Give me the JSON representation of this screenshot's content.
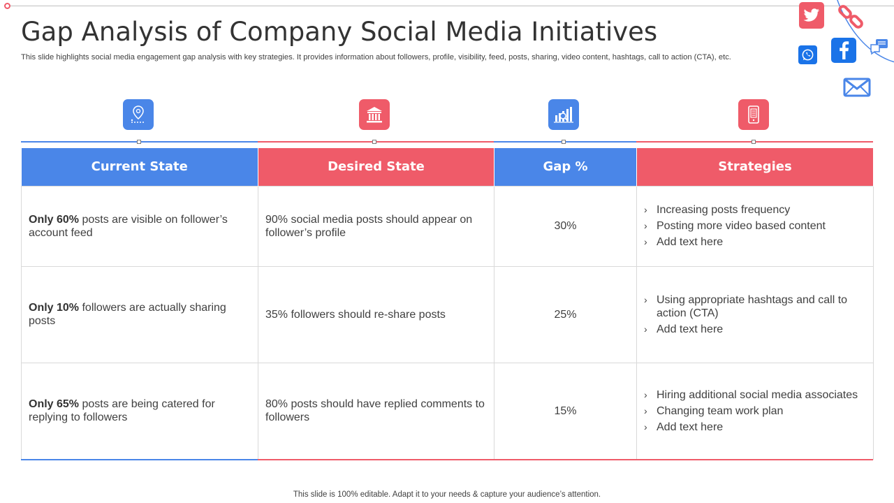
{
  "header": {
    "title": "Gap Analysis of Company Social Media Initiatives",
    "subtitle": "This slide highlights social media engagement gap analysis with key strategies. It provides information about followers, profile, visibility, feed, posts, sharing, video content, hashtags, call to action (CTA),  etc."
  },
  "icons": {
    "col1": "map-pin-icon",
    "col2": "bank-building-icon",
    "col3": "bar-chart-icon",
    "col4": "phone-document-icon",
    "social": [
      "twitter-icon",
      "link-icon",
      "whatsapp-icon",
      "facebook-icon",
      "chat-icon",
      "mail-icon"
    ]
  },
  "colors": {
    "blue": "#4a86e8",
    "red": "#ef5b69"
  },
  "table": {
    "headers": [
      "Current State",
      "Desired State",
      "Gap %",
      "Strategies"
    ],
    "rows": [
      {
        "current_bold": "Only 60%",
        "current_text": " posts are visible on follower’s account feed",
        "desired": "90% social media posts should appear on follower’s profile",
        "gap": "30%",
        "strategies": [
          "Increasing posts frequency",
          "Posting more video based content",
          "Add text here"
        ]
      },
      {
        "current_bold": "Only 10%",
        "current_text": " followers are actually  sharing posts",
        "desired": "35% followers should re-share posts",
        "gap": "25%",
        "strategies": [
          "Using appropriate hashtags and call to action (CTA)",
          "Add text here"
        ]
      },
      {
        "current_bold": "Only 65%",
        "current_text": " posts are being catered for replying to followers",
        "desired": "80% posts should have replied comments to followers",
        "gap": "15%",
        "strategies": [
          "Hiring additional social media associates",
          "Changing team work plan",
          "Add text here"
        ]
      }
    ]
  },
  "footer": "This slide is 100% editable. Adapt it to your needs & capture your audience’s attention.",
  "bullet": "›"
}
